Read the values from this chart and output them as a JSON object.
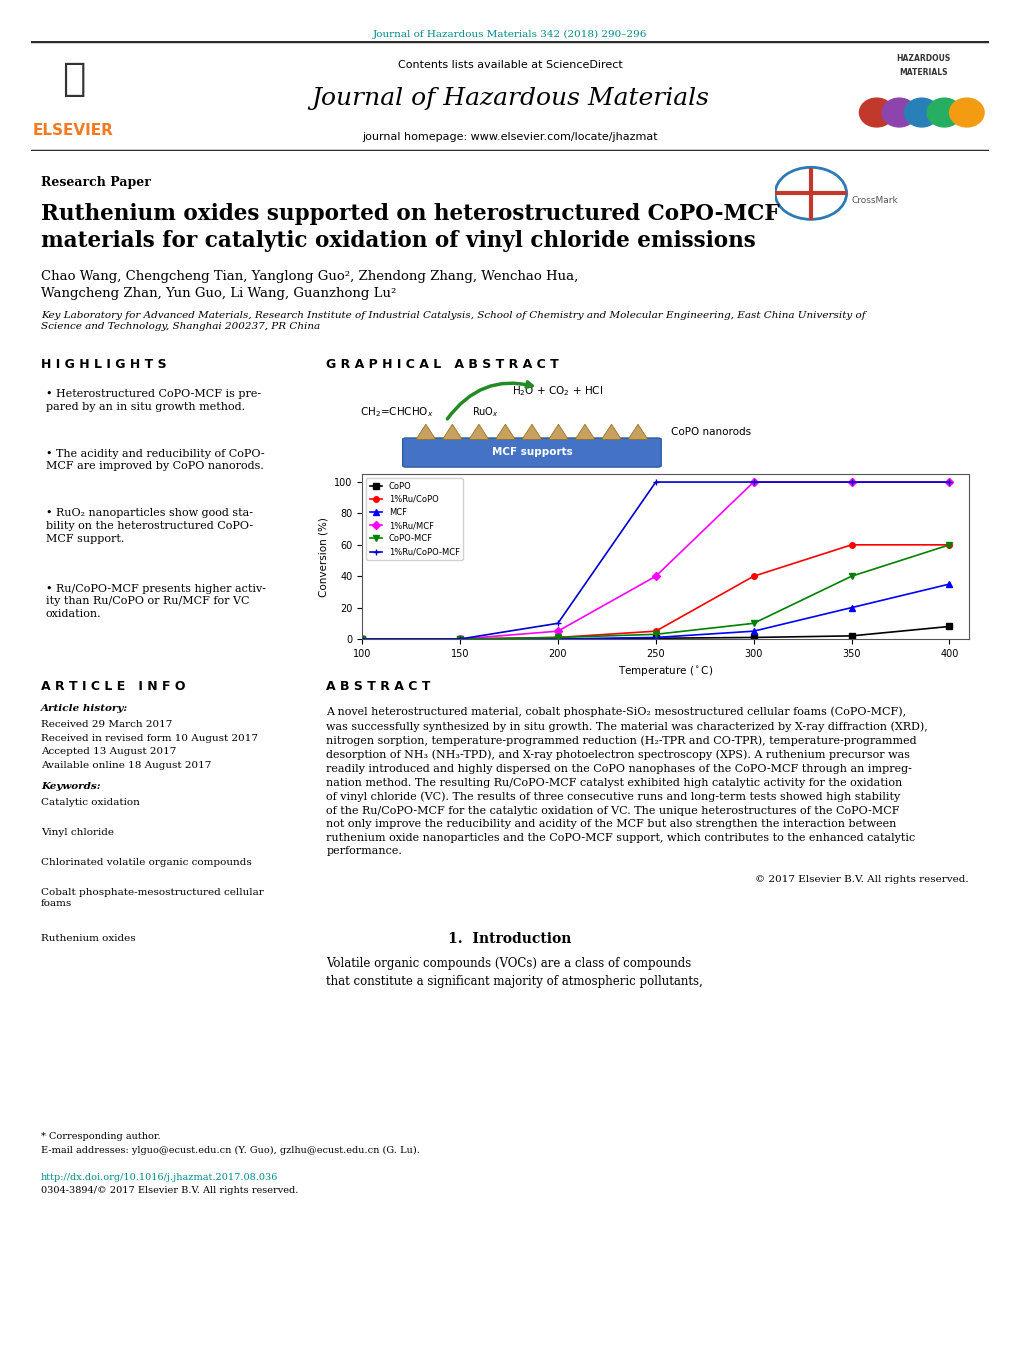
{
  "journal_ref": "Journal of Hazardous Materials 342 (2018) 290–296",
  "journal_ref_color": "#008B8B",
  "header_bg": "#E8E8E8",
  "contents_text": "Contents lists available at ",
  "sciencedirect_text": "ScienceDirect",
  "sciencedirect_color": "#008B8B",
  "journal_title": "Journal of Hazardous Materials",
  "journal_homepage_prefix": "journal homepage: ",
  "journal_homepage_url": "www.elsevier.com/locate/jhazmat",
  "journal_homepage_url_color": "#008B8B",
  "section_label": "Research Paper",
  "paper_title": "Ruthenium oxides supported on heterostructured CoPO-MCF\nmaterials for catalytic oxidation of vinyl chloride emissions",
  "authors": "Chao Wang, Chengcheng Tian, Yanglong Guo², Zhendong Zhang, Wenchao Hua,\nWangcheng Zhan, Yun Guo, Li Wang, Guanzhong Lu²",
  "affiliation": "Key Laboratory for Advanced Materials, Research Institute of Industrial Catalysis, School of Chemistry and Molecular Engineering, East China University of\nScience and Technology, Shanghai 200237, PR China",
  "highlights_title": "H I G H L I G H T S",
  "highlights": [
    "Heterostructured CoPO-MCF is pre-\npared by an in situ growth method.",
    "The acidity and reducibility of CoPO-\nMCF are improved by CoPO nanorods.",
    "RuO₂ nanoparticles show good sta-\nbility on the heterostructured CoPO-\nMCF support.",
    "Ru/CoPO-MCF presents higher activ-\nity than Ru/CoPO or Ru/MCF for VC\noxidation."
  ],
  "graphical_abstract_title": "G R A P H I C A L   A B S T R A C T",
  "article_info_title": "A R T I C L E   I N F O",
  "article_history_label": "Article history:",
  "received": "Received 29 March 2017",
  "received_revised": "Received in revised form 10 August 2017",
  "accepted": "Accepted 13 August 2017",
  "available": "Available online 18 August 2017",
  "keywords_label": "Keywords:",
  "keywords": [
    "Catalytic oxidation",
    "Vinyl chloride",
    "Chlorinated volatile organic compounds",
    "Cobalt phosphate-mesostructured cellular\nfoams",
    "Ruthenium oxides"
  ],
  "abstract_title": "A B S T R A C T",
  "abstract_text": "A novel heterostructured material, cobalt phosphate-SiO₂ mesostructured cellular foams (CoPO-MCF),\nwas successfully synthesized by in situ growth. The material was characterized by X-ray diffraction (XRD),\nnitrogen sorption, temperature-programmed reduction (H₂-TPR and CO-TPR), temperature-programmed\ndesorption of NH₃ (NH₃-TPD), and X-ray photoelectron spectroscopy (XPS). A ruthenium precursor was\nreadily introduced and highly dispersed on the CoPO nanophases of the CoPO-MCF through an impreg-\nnation method. The resulting Ru/CoPO-MCF catalyst exhibited high catalytic activity for the oxidation\nof vinyl chloride (VC). The results of three consecutive runs and long-term tests showed high stability\nof the Ru/CoPO-MCF for the catalytic oxidation of VC. The unique heterostructures of the CoPO-MCF\nnot only improve the reducibility and acidity of the MCF but also strengthen the interaction between\nruthenium oxide nanoparticles and the CoPO-MCF support, which contributes to the enhanced catalytic\nperformance.",
  "copyright": "© 2017 Elsevier B.V. All rights reserved.",
  "intro_section": "1.  Introduction",
  "intro_text": "Volatile organic compounds (VOCs) are a class of compounds\nthat constitute a significant majority of atmospheric pollutants,",
  "footnote_star": "* Corresponding author.",
  "footnote_email": "E-mail addresses: ylguo@ecust.edu.cn (Y. Guo), gzlhu@ecust.edu.cn (G. Lu).",
  "doi_text": "http://dx.doi.org/10.1016/j.jhazmat.2017.08.036",
  "issn_text": "0304-3894/© 2017 Elsevier B.V. All rights reserved.",
  "link_color": "#008B8B",
  "bg_white": "#FFFFFF",
  "text_black": "#000000",
  "elsevier_orange": "#F47920",
  "border_dark": "#2C2C2C",
  "section_divider_color": "#555555",
  "plot_data": {
    "CoPO": {
      "color": "#000000",
      "marker": "s",
      "temps": [
        100,
        150,
        200,
        250,
        300,
        350,
        400
      ],
      "conv": [
        0,
        0,
        0,
        0.5,
        1,
        2,
        8
      ]
    },
    "1%Ru/CoPO": {
      "color": "#FF0000",
      "marker": "o",
      "temps": [
        100,
        150,
        200,
        250,
        300,
        350,
        400
      ],
      "conv": [
        0,
        0,
        1,
        5,
        40,
        60,
        60
      ]
    },
    "MCF": {
      "color": "#0000FF",
      "marker": "^",
      "temps": [
        100,
        150,
        200,
        250,
        300,
        350,
        400
      ],
      "conv": [
        0,
        0,
        0,
        1,
        5,
        20,
        35
      ]
    },
    "1%Ru/MCF": {
      "color": "#FF00FF",
      "marker": "D",
      "temps": [
        100,
        150,
        200,
        250,
        300,
        350,
        400
      ],
      "conv": [
        0,
        0,
        5,
        40,
        100,
        100,
        100
      ]
    },
    "CoPO-MCF": {
      "color": "#008000",
      "marker": "v",
      "temps": [
        100,
        150,
        200,
        250,
        300,
        350,
        400
      ],
      "conv": [
        0,
        0,
        1,
        3,
        10,
        40,
        60
      ]
    },
    "1%Ru/CoPO-MCF": {
      "color": "#0000CD",
      "marker": "+",
      "temps": [
        100,
        150,
        200,
        250,
        300,
        350,
        400
      ],
      "conv": [
        0,
        0,
        10,
        100,
        100,
        100,
        100
      ]
    }
  }
}
